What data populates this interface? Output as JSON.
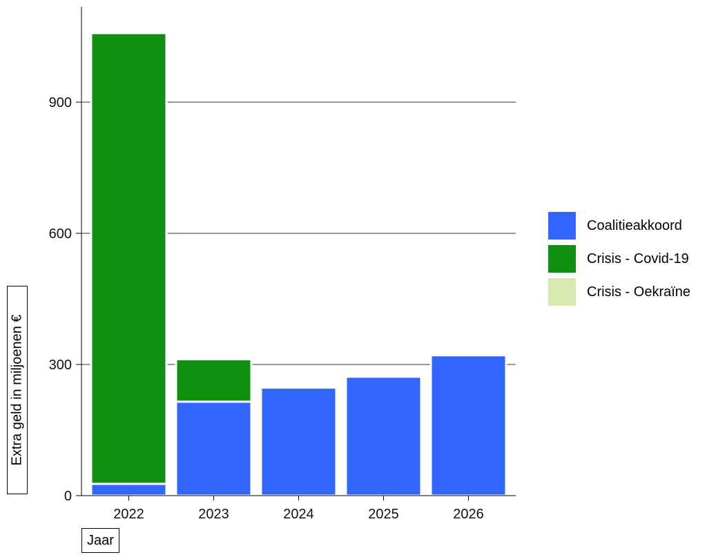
{
  "chart_data": {
    "type": "bar",
    "stacked": true,
    "categories": [
      "2022",
      "2023",
      "2024",
      "2025",
      "2026"
    ],
    "series": [
      {
        "name": "Coalitieakkoord",
        "color": "#3366ff",
        "values": [
          27,
          215,
          247,
          272,
          321
        ]
      },
      {
        "name": "Crisis - Covid-19",
        "color": "#109010",
        "values": [
          1031,
          97,
          0,
          0,
          0
        ]
      },
      {
        "name": "Crisis - Oekraïne",
        "color": "#d9e8b0",
        "values": [
          0,
          0,
          0,
          0,
          0
        ]
      }
    ],
    "xlabel": "Jaar",
    "ylabel": "Extra geld in miljoenen €",
    "ylim": [
      0,
      1100
    ],
    "yticks": [
      0,
      300,
      600,
      900
    ],
    "ytick_labels": [
      "0",
      "300",
      "600",
      "900"
    ],
    "grid": true,
    "legend": "right"
  }
}
